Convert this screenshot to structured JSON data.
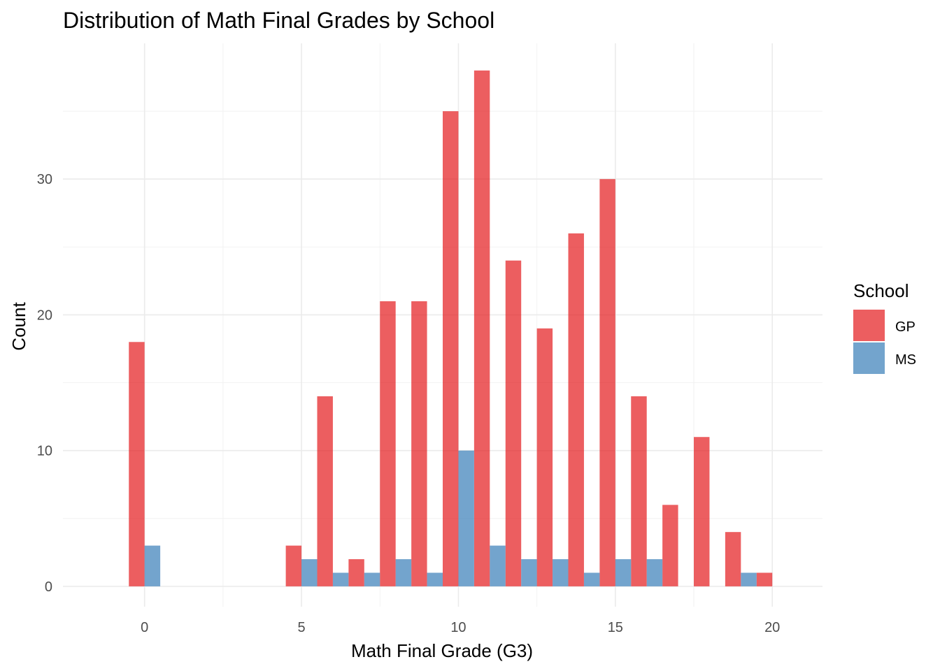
{
  "chart_data": {
    "type": "bar",
    "title": "Distribution of Math Final Grades by School",
    "xlabel": "Math Final Grade (G3)",
    "ylabel": "Count",
    "xlim": [
      -2.6,
      21.6
    ],
    "ylim": [
      -1.5,
      40.0
    ],
    "xticks": [
      0,
      5,
      10,
      15,
      20
    ],
    "xtick_labels": [
      "0",
      "5",
      "10",
      "15",
      "20"
    ],
    "yticks": [
      0,
      10,
      20,
      30
    ],
    "ytick_labels": [
      "0",
      "10",
      "20",
      "30"
    ],
    "grid": true,
    "legend": {
      "title": "School",
      "position": "right"
    },
    "bin_width": 1,
    "bins": [
      0,
      1,
      2,
      3,
      4,
      5,
      6,
      7,
      8,
      9,
      10,
      11,
      12,
      13,
      14,
      15,
      16,
      17,
      18,
      19,
      20
    ],
    "series": [
      {
        "name": "GP",
        "color": "#E41A1C",
        "values": [
          18,
          0,
          0,
          0,
          0,
          3,
          14,
          2,
          21,
          21,
          35,
          38,
          24,
          19,
          26,
          30,
          14,
          6,
          11,
          4,
          1
        ]
      },
      {
        "name": "MS",
        "color": "#377EB8",
        "values": [
          3,
          0,
          0,
          0,
          0,
          2,
          1,
          1,
          2,
          1,
          10,
          3,
          2,
          2,
          1,
          2,
          2,
          0,
          0,
          1,
          0
        ]
      }
    ]
  }
}
